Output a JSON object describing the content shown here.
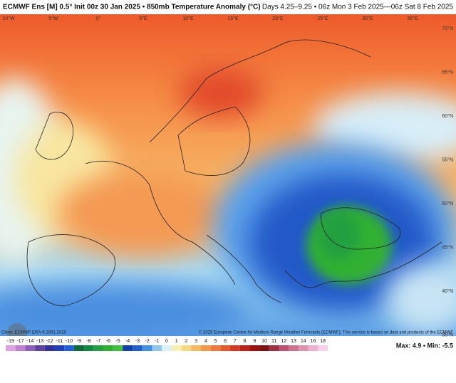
{
  "header": {
    "left": "ECMWF Ens [M] 0.5° Init 00z 30 Jan 2025 • 850mb Temperature Anomaly (°C)",
    "right": "Days 4.25–9.25 • 06z Mon 3 Feb 2025—06z Sat 8 Feb 2025"
  },
  "longitudes": [
    "10°W",
    "5°W",
    "0°",
    "5°E",
    "10°E",
    "15°E",
    "20°E",
    "25°E",
    "30°E",
    "35°E"
  ],
  "latitudes": [
    "70°N",
    "65°N",
    "60°N",
    "55°N",
    "50°N",
    "45°N",
    "40°N",
    "35°N"
  ],
  "credits": {
    "left": "Climo: ECMWF ERA-5 1991-2020",
    "right": "© 2025 European Centre for Medium-Range Weather Forecasts (ECMWF). This service is based on data and products of the ECMWF"
  },
  "colorbar": {
    "labels": [
      -19,
      -17,
      -14,
      -13,
      -12,
      -11,
      -10,
      -9,
      -8,
      -7,
      -6,
      -5,
      -4,
      -3,
      -2,
      -1,
      0,
      1,
      2,
      3,
      4,
      5,
      6,
      7,
      8,
      9,
      10,
      11,
      12,
      13,
      14,
      16,
      18
    ],
    "colors": [
      "#e0a0e0",
      "#c080d0",
      "#9060c0",
      "#6040a0",
      "#3030a0",
      "#2040c0",
      "#2060e0",
      "#0a6a3a",
      "#108a40",
      "#20a040",
      "#30b030",
      "#40c040",
      "#1040b0",
      "#2060d0",
      "#4090e8",
      "#90c8f0",
      "#d8f0f8",
      "#f8f0b0",
      "#f8d880",
      "#f8b860",
      "#f49848",
      "#f07838",
      "#e85828",
      "#d83820",
      "#c02018",
      "#a01010",
      "#801010",
      "#a03040",
      "#c05070",
      "#d07090",
      "#e090b0",
      "#f0b0d0",
      "#f8d0e8"
    ]
  },
  "stats": "Max: 4.9 • Min: -5.5"
}
